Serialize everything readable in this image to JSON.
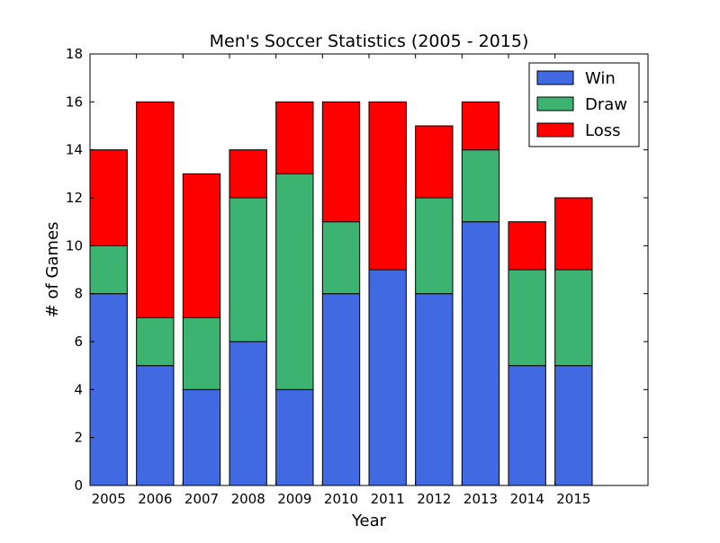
{
  "chart_data": {
    "type": "bar",
    "stacked": true,
    "title": "Men's Soccer Statistics (2005 - 2015)",
    "xlabel": "Year",
    "ylabel": "# of Games",
    "categories": [
      "2005",
      "2006",
      "2007",
      "2008",
      "2009",
      "2010",
      "2011",
      "2012",
      "2013",
      "2014",
      "2015"
    ],
    "series": [
      {
        "name": "Win",
        "color": "#4169e1",
        "values": [
          8,
          5,
          4,
          6,
          4,
          8,
          9,
          8,
          11,
          5,
          5
        ]
      },
      {
        "name": "Draw",
        "color": "#3cb371",
        "values": [
          2,
          2,
          3,
          6,
          9,
          3,
          0,
          4,
          3,
          4,
          4
        ]
      },
      {
        "name": "Loss",
        "color": "#ff0000",
        "values": [
          4,
          9,
          6,
          2,
          3,
          5,
          7,
          3,
          2,
          2,
          3
        ]
      }
    ],
    "ylim": [
      0,
      18
    ],
    "yticks": [
      "0",
      "2",
      "4",
      "6",
      "8",
      "10",
      "12",
      "14",
      "16",
      "18"
    ],
    "grid": false,
    "legend_position": "top-right"
  }
}
